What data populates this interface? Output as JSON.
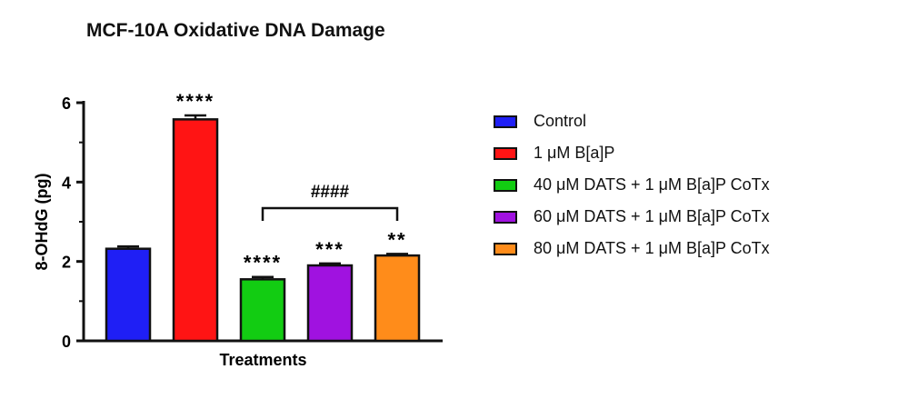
{
  "chart_data": {
    "type": "bar",
    "title": "MCF-10A Oxidative DNA Damage",
    "xlabel": "Treatments",
    "ylabel": "8-OHdG (pg)",
    "ylim": [
      0,
      6
    ],
    "yticks": [
      "0",
      "2",
      "4",
      "6"
    ],
    "categories": [
      "Control",
      "1 μM B[a]P",
      "40 μM DATS + 1 μM B[a]P CoTx",
      "60 μM DATS + 1 μM B[a]P CoTx",
      "80 μM DATS + 1 μM B[a]P CoTx"
    ],
    "values": [
      2.32,
      5.58,
      1.55,
      1.9,
      2.15
    ],
    "errors": [
      0.06,
      0.1,
      0.06,
      0.05,
      0.04
    ],
    "colors": [
      "#1f1ff5",
      "#ff1414",
      "#12cc12",
      "#a012e0",
      "#ff8c1a"
    ],
    "significance": [
      "",
      "****",
      "****",
      "***",
      "**"
    ],
    "bracket": {
      "from": 2,
      "to": 4,
      "label": "####"
    },
    "legend_position": "right",
    "grid": false
  }
}
